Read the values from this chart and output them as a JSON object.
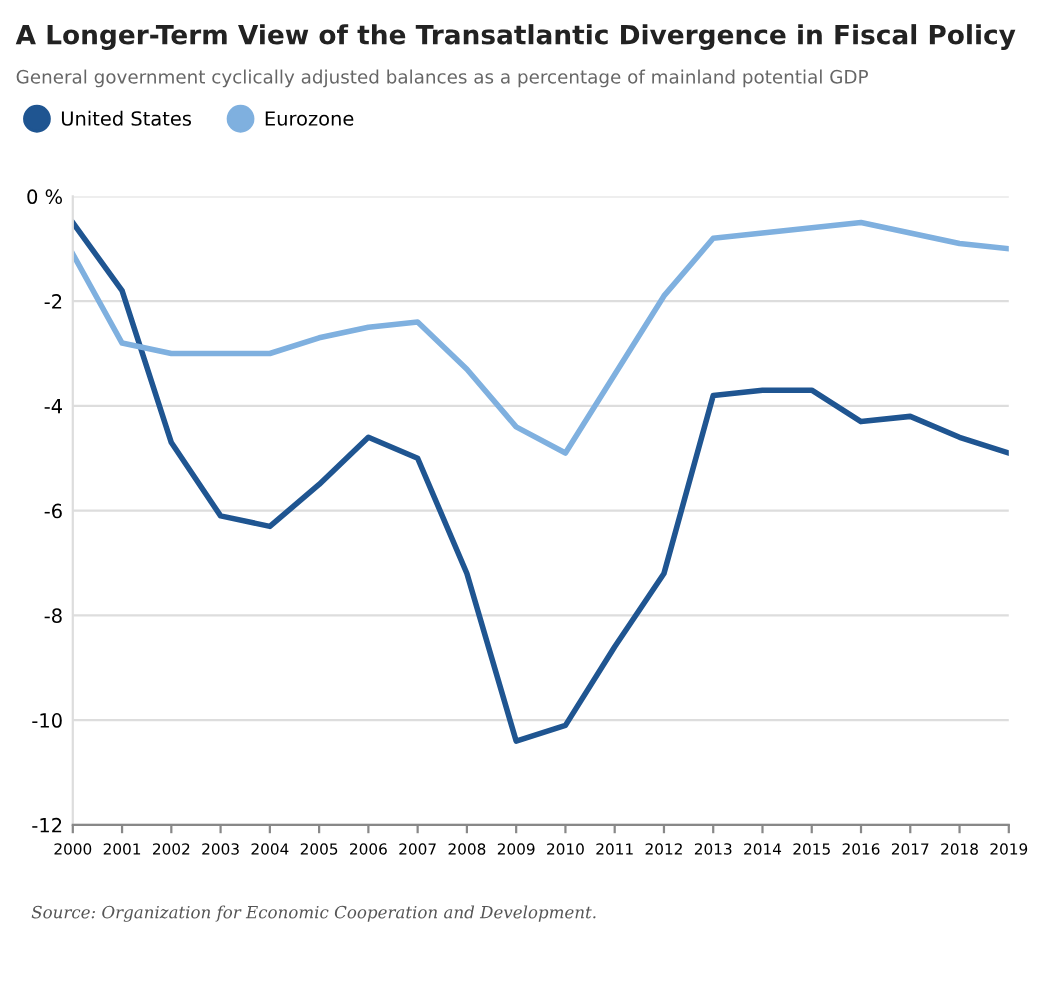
{
  "chart_data": {
    "type": "line",
    "title": "A Longer-Term View of the Transatlantic Divergence in Fiscal Policy",
    "subtitle": "General government cyclically adjusted balances as a percentage of mainland potential GDP",
    "x": [
      2000,
      2001,
      2002,
      2003,
      2004,
      2005,
      2006,
      2007,
      2008,
      2009,
      2010,
      2011,
      2012,
      2013,
      2014,
      2015,
      2016,
      2017,
      2018,
      2019
    ],
    "series": [
      {
        "name": "United States",
        "color": "#1f5591",
        "values": [
          -0.5,
          -1.8,
          -4.7,
          -6.1,
          -6.3,
          -5.5,
          -4.6,
          -5.0,
          -7.2,
          -10.4,
          -10.1,
          -8.6,
          -7.2,
          -3.8,
          -3.7,
          -3.7,
          -4.3,
          -4.2,
          -4.6,
          -4.9
        ]
      },
      {
        "name": "Eurozone",
        "color": "#7fb0df",
        "values": [
          -1.1,
          -2.8,
          -3.0,
          -3.0,
          -3.0,
          -2.7,
          -2.5,
          -2.4,
          -3.3,
          -4.4,
          -4.9,
          -3.4,
          -1.9,
          -0.8,
          -0.7,
          -0.6,
          -0.5,
          -0.7,
          -0.9,
          -1.0
        ]
      }
    ],
    "xlim": [
      2000,
      2019
    ],
    "xticks": [
      2000,
      2001,
      2002,
      2003,
      2004,
      2005,
      2006,
      2007,
      2008,
      2009,
      2010,
      2011,
      2012,
      2013,
      2014,
      2015,
      2016,
      2017,
      2018,
      2019
    ],
    "ylim": [
      -12,
      0
    ],
    "yticks": [
      {
        "value": 0,
        "label": "0 %"
      },
      -2,
      -4,
      -6,
      -8,
      -10,
      -12
    ],
    "grid": "y",
    "legend": "top left",
    "marker": "none",
    "line_style": "solid",
    "annotations": [
      "Source: Organization for Economic Cooperation and Development."
    ]
  }
}
